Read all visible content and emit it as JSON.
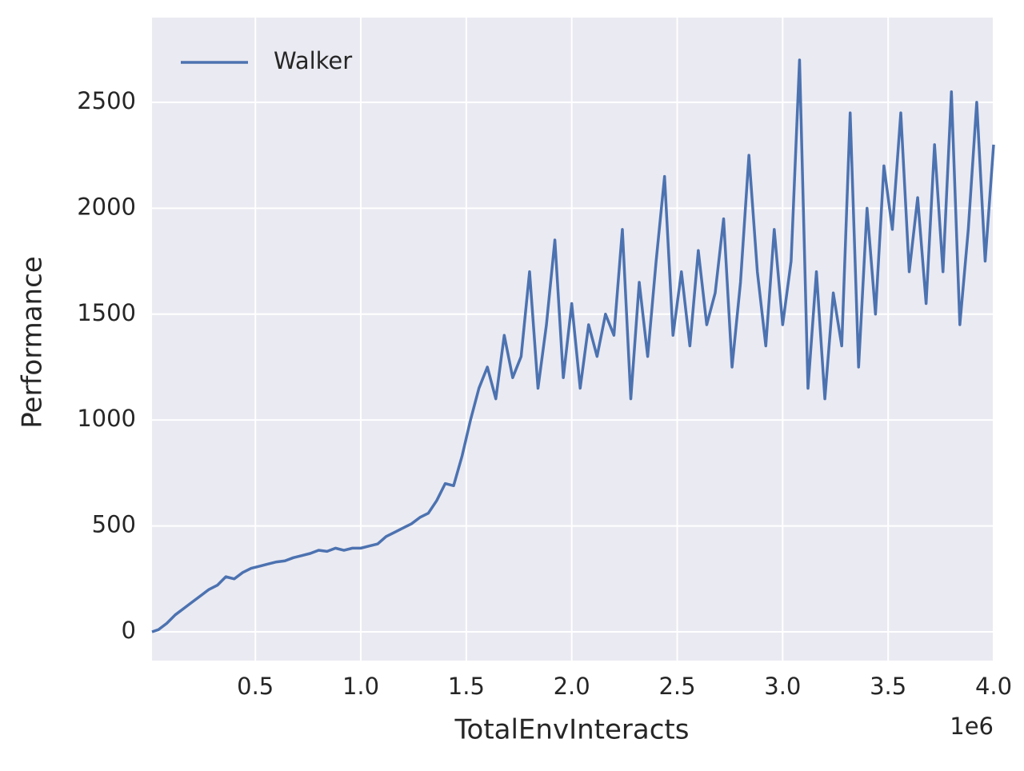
{
  "chart_data": {
    "type": "line",
    "xlabel": "TotalEnvInteracts",
    "ylabel": "Performance",
    "x_offset_label": "1e6",
    "x": [
      10000,
      40000,
      80000,
      120000,
      160000,
      200000,
      240000,
      280000,
      320000,
      360000,
      400000,
      440000,
      480000,
      520000,
      560000,
      600000,
      640000,
      680000,
      720000,
      760000,
      800000,
      840000,
      880000,
      920000,
      960000,
      1000000,
      1040000,
      1080000,
      1120000,
      1160000,
      1200000,
      1240000,
      1280000,
      1320000,
      1360000,
      1400000,
      1440000,
      1480000,
      1520000,
      1560000,
      1600000,
      1640000,
      1680000,
      1720000,
      1760000,
      1800000,
      1840000,
      1880000,
      1920000,
      1960000,
      2000000,
      2040000,
      2080000,
      2120000,
      2160000,
      2200000,
      2240000,
      2280000,
      2320000,
      2360000,
      2400000,
      2440000,
      2480000,
      2520000,
      2560000,
      2600000,
      2640000,
      2680000,
      2720000,
      2760000,
      2800000,
      2840000,
      2880000,
      2920000,
      2960000,
      3000000,
      3040000,
      3080000,
      3120000,
      3160000,
      3200000,
      3240000,
      3280000,
      3320000,
      3360000,
      3400000,
      3440000,
      3480000,
      3520000,
      3560000,
      3600000,
      3640000,
      3680000,
      3720000,
      3760000,
      3800000,
      3840000,
      3880000,
      3920000,
      3960000,
      4000000
    ],
    "series": [
      {
        "name": "Walker",
        "color": "#4c72b0",
        "values": [
          0,
          10,
          40,
          80,
          110,
          140,
          170,
          200,
          220,
          260,
          250,
          280,
          300,
          310,
          320,
          330,
          335,
          350,
          360,
          370,
          385,
          380,
          395,
          385,
          395,
          395,
          405,
          415,
          450,
          470,
          490,
          510,
          540,
          560,
          620,
          700,
          690,
          830,
          1000,
          1150,
          1250,
          1100,
          1400,
          1200,
          1300,
          1700,
          1150,
          1450,
          1850,
          1200,
          1550,
          1150,
          1450,
          1300,
          1500,
          1400,
          1900,
          1100,
          1650,
          1300,
          1750,
          2150,
          1400,
          1700,
          1350,
          1800,
          1450,
          1600,
          1950,
          1250,
          1650,
          2250,
          1700,
          1350,
          1900,
          1450,
          1750,
          2700,
          1150,
          1700,
          1100,
          1600,
          1350,
          2450,
          1250,
          2000,
          1500,
          2200,
          1900,
          2450,
          1700,
          2050,
          1550,
          2300,
          1700,
          2550,
          1450,
          1900,
          2500,
          1750,
          2300
        ]
      }
    ],
    "xlim": [
      10000,
      4000000
    ],
    "xticks": [
      {
        "value": 500000,
        "label": "0.5"
      },
      {
        "value": 1000000,
        "label": "1.0"
      },
      {
        "value": 1500000,
        "label": "1.5"
      },
      {
        "value": 2000000,
        "label": "2.0"
      },
      {
        "value": 2500000,
        "label": "2.5"
      },
      {
        "value": 3000000,
        "label": "3.0"
      },
      {
        "value": 3500000,
        "label": "3.5"
      },
      {
        "value": 4000000,
        "label": "4.0"
      }
    ],
    "ylim": [
      -136,
      2900
    ],
    "yticks": [
      0,
      500,
      1000,
      1500,
      2000,
      2500
    ],
    "grid": true,
    "legend": "upper left",
    "background": "#eaeaf2"
  }
}
